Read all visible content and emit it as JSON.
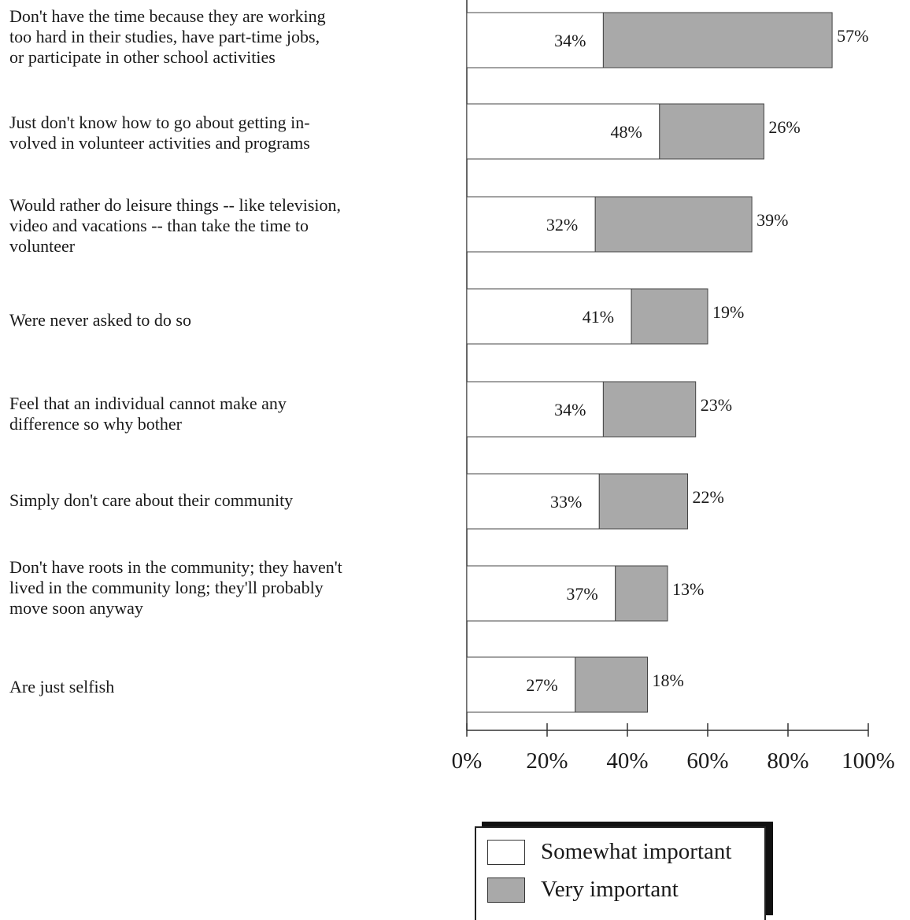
{
  "chart_data": {
    "type": "bar",
    "orientation": "horizontal",
    "stacked": true,
    "categories": [
      "Don't have the time because they are working\ntoo hard in their studies, have part-time jobs,\nor participate in other school activities",
      "Just don't know how to go about getting in-\nvolved in volunteer activities and programs",
      "Would rather do leisure things -- like television,\nvideo and vacations -- than take the time to\nvolunteer",
      " Were never asked to do so",
      "Feel that an individual cannot make any\ndifference so why bother",
      "Simply don't care about their community",
      "Don't have roots in the community; they haven't\nlived in the community long; they'll probably\nmove soon anyway",
      "Are just selfish"
    ],
    "series": [
      {
        "name": "Somewhat important",
        "values": [
          34,
          48,
          32,
          41,
          34,
          33,
          37,
          27
        ],
        "labels": [
          "34%",
          "48%",
          "32%",
          "41%",
          "34%",
          "33%",
          "37%",
          "27%"
        ]
      },
      {
        "name": "Very important",
        "values": [
          57,
          26,
          39,
          19,
          23,
          22,
          13,
          18
        ],
        "labels": [
          "57%",
          "26%",
          "39%",
          "19%",
          "23%",
          "22%",
          "13%",
          "18%"
        ]
      }
    ],
    "xlim": [
      0,
      100
    ],
    "xticks": [
      "0%",
      "20%",
      "40%",
      "60%",
      "80%",
      "100%"
    ],
    "grid": false,
    "legend": "bottom-right",
    "colors": {
      "somewhat": "#ffffff",
      "very": "#a9a9a9",
      "axis": "#333333"
    }
  }
}
